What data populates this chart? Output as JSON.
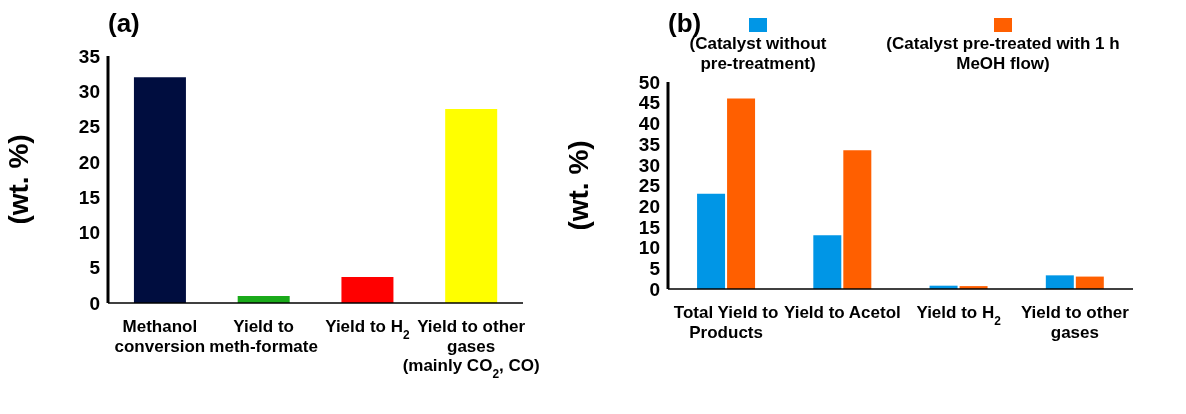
{
  "chart_data": [
    {
      "type": "bar",
      "title": "(a)",
      "ylabel": "(wt. %)",
      "categories": [
        "Methanol conversion",
        "Yield to meth-formate",
        "Yield to H$_{2}$",
        "Yield to other gases (mainly CO$_{2}$, CO)"
      ],
      "values": [
        32,
        1,
        3.7,
        27.5
      ],
      "colors": [
        "#000d3f",
        "#1aaa1a",
        "#ff0000",
        "#ffff00"
      ],
      "ylim": [
        0,
        35
      ],
      "yticks": [
        0,
        5,
        10,
        15,
        20,
        25,
        30,
        35
      ],
      "grid": false,
      "legend": false
    },
    {
      "type": "bar",
      "title": "(b)",
      "ylabel": "(wt. %)",
      "categories": [
        "Total Yield to Products",
        "Yield to Acetol",
        "Yield to H$_{2}$",
        "Yield to other gases"
      ],
      "series": [
        {
          "name": "(Catalyst without pre-treatment)",
          "color": "#0096e6",
          "values": [
            23,
            13,
            0.8,
            3.3
          ]
        },
        {
          "name": "(Catalyst pre-treated with 1 h MeOH flow)",
          "color": "#ff5f00",
          "values": [
            46,
            33.5,
            0.7,
            3.0
          ]
        }
      ],
      "ylim": [
        0,
        50
      ],
      "yticks": [
        0,
        5,
        10,
        15,
        20,
        25,
        30,
        35,
        40,
        45,
        50
      ],
      "grid": false,
      "legend": "top"
    }
  ]
}
